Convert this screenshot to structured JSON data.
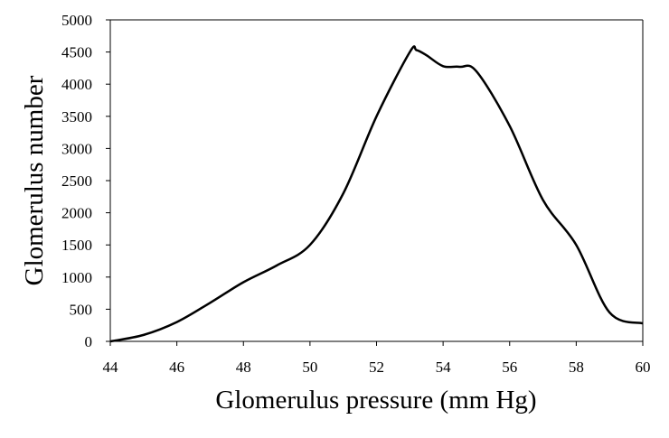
{
  "chart_data": {
    "type": "line",
    "title": "",
    "xlabel": "Glomerulus pressure (mm Hg)",
    "ylabel": "Glomerulus number",
    "xlim": [
      44,
      60
    ],
    "ylim": [
      0,
      5000
    ],
    "x_ticks": [
      "44",
      "46",
      "48",
      "50",
      "52",
      "54",
      "56",
      "58",
      "60"
    ],
    "y_ticks": [
      "0",
      "500",
      "1000",
      "1500",
      "2000",
      "2500",
      "3000",
      "3500",
      "4000",
      "4500",
      "5000"
    ],
    "grid": false,
    "legend": "none",
    "series": [
      {
        "color": "#000000",
        "x": [
          44,
          45,
          46,
          47,
          48,
          49,
          50,
          51,
          52,
          53,
          53.2,
          53.5,
          54,
          54.5,
          55,
          56,
          57,
          58,
          59,
          60
        ],
        "y": [
          0,
          100,
          300,
          600,
          920,
          1180,
          1500,
          2300,
          3500,
          4500,
          4530,
          4450,
          4280,
          4270,
          4200,
          3350,
          2200,
          1500,
          450,
          280
        ]
      }
    ]
  }
}
